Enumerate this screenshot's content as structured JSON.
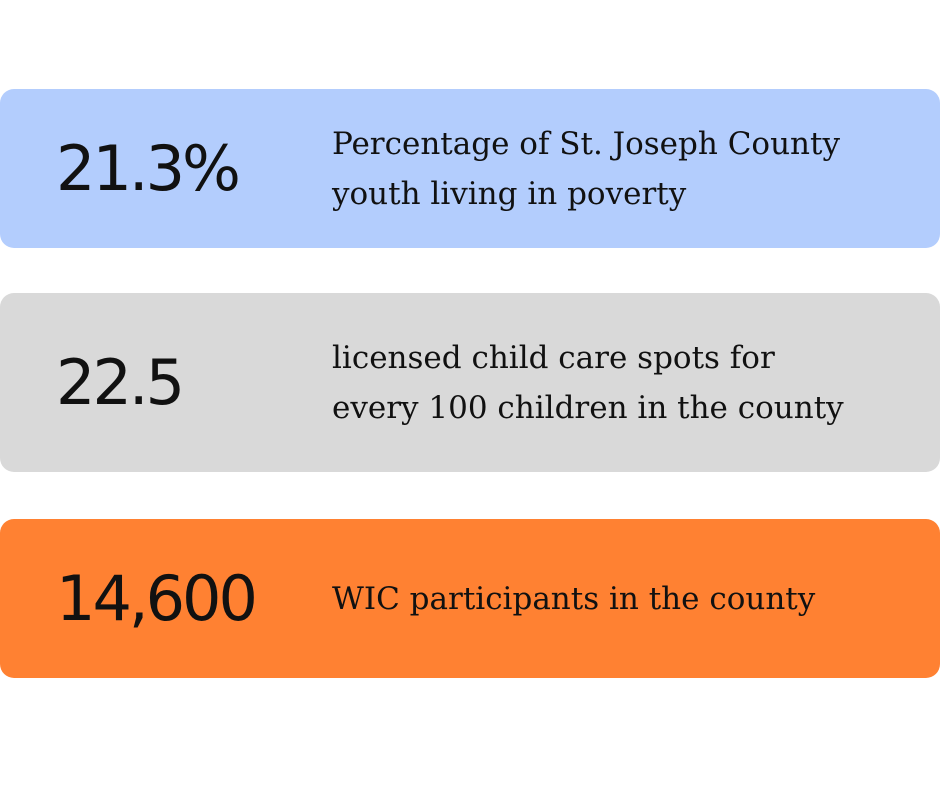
{
  "stats": [
    {
      "value": "21.3%",
      "lines": [
        "Percentage of St. Joseph County",
        "youth living in poverty"
      ],
      "color": "#b3cdfd"
    },
    {
      "value": "22.5",
      "lines": [
        "licensed child care spots for",
        "every 100 children in the county"
      ],
      "color": "#d9d9d9"
    },
    {
      "value": "14,600",
      "lines": [
        "WIC participants in the county"
      ],
      "color": "#ff8132"
    }
  ]
}
